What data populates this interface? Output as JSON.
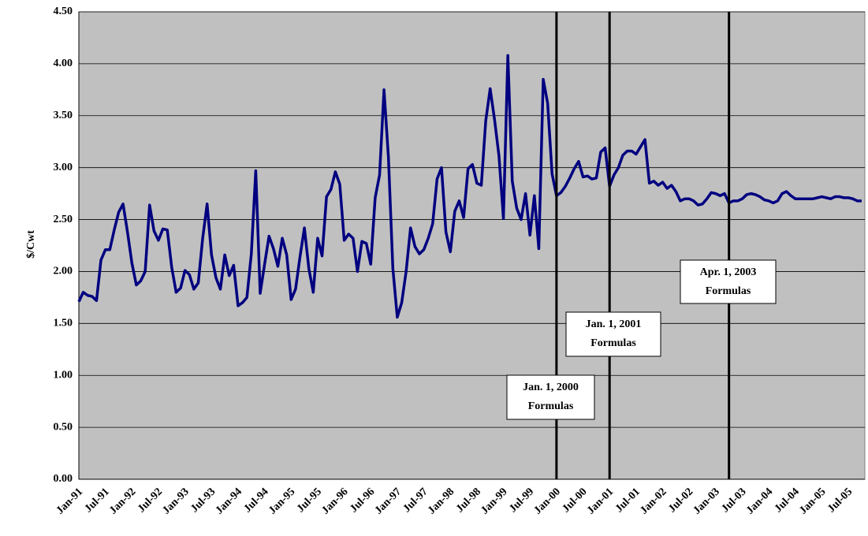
{
  "chart_data": {
    "type": "line",
    "y_label": "$/Cwt",
    "categories": [
      "Jan-91",
      null,
      null,
      null,
      null,
      null,
      "Jul-91",
      null,
      null,
      null,
      null,
      null,
      "Jan-92",
      null,
      null,
      null,
      null,
      null,
      "Jul-92",
      null,
      null,
      null,
      null,
      null,
      "Jan-93",
      null,
      null,
      null,
      null,
      null,
      "Jul-93",
      null,
      null,
      null,
      null,
      null,
      "Jan-94",
      null,
      null,
      null,
      null,
      null,
      "Jul-94",
      null,
      null,
      null,
      null,
      null,
      "Jan-95",
      null,
      null,
      null,
      null,
      null,
      "Jul-95",
      null,
      null,
      null,
      null,
      null,
      "Jan-96",
      null,
      null,
      null,
      null,
      null,
      "Jul-96",
      null,
      null,
      null,
      null,
      null,
      "Jan-97",
      null,
      null,
      null,
      null,
      null,
      "Jul-97",
      null,
      null,
      null,
      null,
      null,
      "Jan-98",
      null,
      null,
      null,
      null,
      null,
      "Jul-98",
      null,
      null,
      null,
      null,
      null,
      "Jan-99",
      null,
      null,
      null,
      null,
      null,
      "Jul-99",
      null,
      null,
      null,
      null,
      null,
      "Jan-00",
      null,
      null,
      null,
      null,
      null,
      "Jul-00",
      null,
      null,
      null,
      null,
      null,
      "Jan-01",
      null,
      null,
      null,
      null,
      null,
      "Jul-01",
      null,
      null,
      null,
      null,
      null,
      "Jan-02",
      null,
      null,
      null,
      null,
      null,
      "Jul-02",
      null,
      null,
      null,
      null,
      null,
      "Jan-03",
      null,
      null,
      null,
      null,
      null,
      "Jul-03",
      null,
      null,
      null,
      null,
      null,
      "Jan-04",
      null,
      null,
      null,
      null,
      null,
      "Jul-04",
      null,
      null,
      null,
      null,
      null,
      "Jan-05",
      null,
      null,
      null,
      null,
      null,
      "Jul-05",
      null,
      null,
      null
    ],
    "series": [
      {
        "color": "#000080",
        "values": [
          1.71,
          1.8,
          1.77,
          1.76,
          1.72,
          2.11,
          2.21,
          2.21,
          2.4,
          2.57,
          2.65,
          2.38,
          2.08,
          1.87,
          1.91,
          2.0,
          2.64,
          2.39,
          2.3,
          2.41,
          2.4,
          2.04,
          1.8,
          1.84,
          2.01,
          1.97,
          1.83,
          1.89,
          2.32,
          2.65,
          2.16,
          1.94,
          1.83,
          2.16,
          1.96,
          2.06,
          1.67,
          1.7,
          1.75,
          2.17,
          2.97,
          1.79,
          2.07,
          2.34,
          2.22,
          2.05,
          2.32,
          2.16,
          1.73,
          1.83,
          2.14,
          2.42,
          2.03,
          1.8,
          2.32,
          2.15,
          2.72,
          2.79,
          2.96,
          2.84,
          2.3,
          2.36,
          2.32,
          2.0,
          2.29,
          2.27,
          2.07,
          2.71,
          2.93,
          3.75,
          3.1,
          2.03,
          1.56,
          1.7,
          2.0,
          2.42,
          2.24,
          2.17,
          2.21,
          2.32,
          2.46,
          2.89,
          3.0,
          2.38,
          2.19,
          2.58,
          2.68,
          2.52,
          2.99,
          3.03,
          2.85,
          2.83,
          3.45,
          3.76,
          3.46,
          3.11,
          2.51,
          4.08,
          2.87,
          2.61,
          2.5,
          2.75,
          2.35,
          2.73,
          2.22,
          3.85,
          3.62,
          2.94,
          2.73,
          2.76,
          2.82,
          2.9,
          2.99,
          3.06,
          2.91,
          2.92,
          2.89,
          2.9,
          3.15,
          3.19,
          2.82,
          2.93,
          3.0,
          3.12,
          3.16,
          3.16,
          3.13,
          3.2,
          3.27,
          2.85,
          2.87,
          2.83,
          2.86,
          2.8,
          2.83,
          2.77,
          2.68,
          2.7,
          2.7,
          2.68,
          2.64,
          2.65,
          2.7,
          2.76,
          2.75,
          2.73,
          2.75,
          2.66,
          2.68,
          2.68,
          2.7,
          2.74,
          2.75,
          2.74,
          2.72,
          2.69,
          2.68,
          2.66,
          2.68,
          2.75,
          2.77,
          2.73,
          2.7,
          2.7,
          2.7,
          2.7,
          2.7,
          2.71,
          2.72,
          2.71,
          2.7,
          2.72,
          2.72,
          2.71,
          2.71,
          2.7,
          2.68,
          2.68
        ]
      }
    ],
    "ylim": [
      0,
      4.5
    ],
    "yticks": [
      {
        "value": 0,
        "label": "0.00"
      },
      {
        "value": 0.5,
        "label": "0.50"
      },
      {
        "value": 1,
        "label": "1.00"
      },
      {
        "value": 1.5,
        "label": "1.50"
      },
      {
        "value": 2,
        "label": "2.00"
      },
      {
        "value": 2.5,
        "label": "2.50"
      },
      {
        "value": 3,
        "label": "3.00"
      },
      {
        "value": 3.5,
        "label": "3.50"
      },
      {
        "value": 4,
        "label": "4.00"
      },
      {
        "value": 4.5,
        "label": "4.50"
      }
    ],
    "grid": true,
    "vlines": [
      108,
      120,
      147
    ],
    "annotations": [
      {
        "text": [
          "Jan. 1, 2000",
          "Formulas"
        ]
      },
      {
        "text": [
          "Jan. 1, 2001",
          "Formulas"
        ]
      },
      {
        "text": [
          "Apr. 1, 2003",
          "Formulas"
        ]
      }
    ]
  }
}
